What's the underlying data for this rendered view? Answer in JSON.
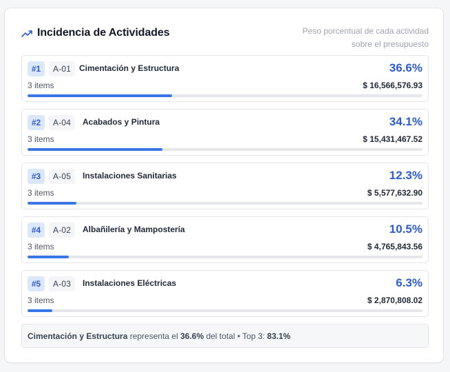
{
  "header": {
    "title": "Incidencia de Actividades",
    "icon": "trending-up-icon",
    "subtitle_line1": "Peso porcentual de cada actividad",
    "subtitle_line2": "sobre el presupuesto"
  },
  "colors": {
    "accent": "#2c5bd3",
    "bar_fill": "#3b76e6",
    "bar_track": "#e5e7eb",
    "rank_bg": "#dbe7fb"
  },
  "activities": [
    {
      "rank": "#1",
      "code": "A-01",
      "name": "Cimentación y Estructura",
      "items": "3 items",
      "percent": "36.6%",
      "percent_value": 36.6,
      "amount": "$ 16,566,576.93"
    },
    {
      "rank": "#2",
      "code": "A-04",
      "name": "Acabados y Pintura",
      "items": "3 items",
      "percent": "34.1%",
      "percent_value": 34.1,
      "amount": "$ 15,431,467.52"
    },
    {
      "rank": "#3",
      "code": "A-05",
      "name": "Instalaciones Sanitarias",
      "items": "3 items",
      "percent": "12.3%",
      "percent_value": 12.3,
      "amount": "$ 5,577,632.90"
    },
    {
      "rank": "#4",
      "code": "A-02",
      "name": "Albañilería y Mampostería",
      "items": "3 items",
      "percent": "10.5%",
      "percent_value": 10.5,
      "amount": "$ 4,765,843.56"
    },
    {
      "rank": "#5",
      "code": "A-03",
      "name": "Instalaciones Eléctricas",
      "items": "3 items",
      "percent": "6.3%",
      "percent_value": 6.3,
      "amount": "$ 2,870,808.02"
    }
  ],
  "footer": {
    "top_name": "Cimentación y Estructura",
    "text1": " representa el ",
    "top_percent": "36.6%",
    "text2": " del total • Top 3: ",
    "top3_percent": "83.1%"
  }
}
